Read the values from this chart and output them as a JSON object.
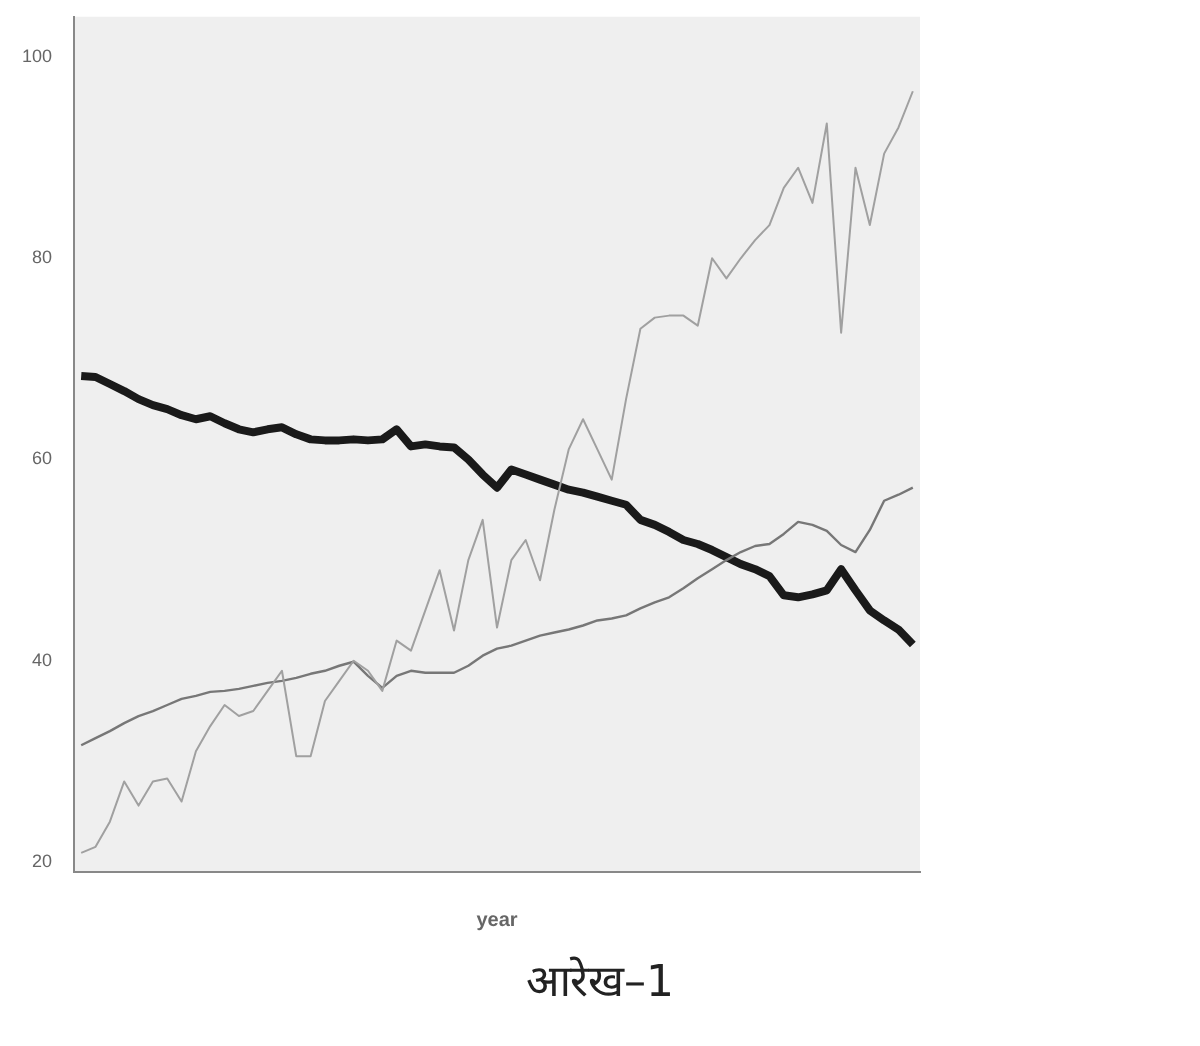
{
  "chart_data": {
    "type": "line",
    "xlabel": "year",
    "annotations": [
      "आरेख–1"
    ],
    "categories": [
      null,
      null,
      null,
      null,
      null,
      null,
      null,
      null,
      null,
      null,
      null,
      null,
      null,
      null,
      null,
      null,
      null,
      null,
      null,
      null,
      null,
      null,
      null,
      null,
      null,
      null,
      null,
      null,
      null,
      null,
      null,
      null,
      null,
      null,
      null,
      null,
      null,
      null,
      null,
      null,
      null,
      null,
      null,
      null,
      null,
      null,
      null,
      null,
      null,
      null,
      null,
      null,
      null,
      null,
      null,
      null,
      null,
      null,
      null
    ],
    "ylim": [
      19,
      104
    ],
    "yticks": [
      20,
      40,
      60,
      80,
      100
    ],
    "grid": false,
    "legend": false,
    "series": [
      {
        "color": "#a0a0a0",
        "values": [
          20.9,
          21.5,
          24,
          28,
          25.6,
          28,
          28.3,
          26,
          31,
          33.5,
          35.6,
          34.5,
          35,
          37,
          39,
          30.5,
          30.5,
          36,
          38,
          40,
          39,
          37,
          42,
          41,
          45,
          49,
          43,
          50,
          54,
          43.3,
          50,
          52,
          48,
          55,
          61,
          64,
          61,
          58,
          66,
          73,
          74.1,
          74.3,
          74.3,
          73.3,
          80,
          78,
          80,
          81.8,
          83.3,
          87,
          89,
          85.5,
          93.4,
          72.6,
          89,
          83.3,
          90.4,
          93,
          96.6
        ]
      },
      {
        "color": "#777777",
        "values": [
          31.6,
          32.3,
          33,
          33.8,
          34.5,
          35,
          35.6,
          36.2,
          36.5,
          36.9,
          37,
          37.2,
          37.5,
          37.8,
          38,
          38.3,
          38.7,
          39,
          39.5,
          39.9,
          38.5,
          37.3,
          38.5,
          39,
          38.8,
          38.8,
          38.8,
          39.5,
          40.5,
          41.2,
          41.5,
          42,
          42.5,
          42.8,
          43.1,
          43.5,
          44,
          44.2,
          44.5,
          45.2,
          45.8,
          46.3,
          47.2,
          48.2,
          49.1,
          50,
          50.8,
          51.4,
          51.6,
          52.6,
          53.8,
          53.5,
          52.9,
          51.5,
          50.8,
          53,
          55.9,
          56.5,
          57.2
        ]
      },
      {
        "color": "#1a1a1a",
        "values": [
          68.3,
          68.2,
          67.5,
          66.8,
          66,
          65.4,
          65,
          64.4,
          64,
          64.3,
          63.6,
          63,
          62.7,
          63,
          63.2,
          62.5,
          62,
          61.9,
          61.9,
          62,
          61.9,
          62,
          63,
          61.3,
          61.5,
          61.3,
          61.2,
          60,
          58.5,
          57.2,
          59,
          58.5,
          58,
          57.5,
          57,
          56.7,
          56.3,
          55.9,
          55.5,
          54,
          53.5,
          52.8,
          52,
          51.6,
          51,
          50.3,
          49.6,
          49.1,
          48.4,
          46.5,
          46.3,
          46.6,
          47,
          49.1,
          47,
          45,
          44,
          43.1,
          41.6
        ]
      }
    ]
  }
}
